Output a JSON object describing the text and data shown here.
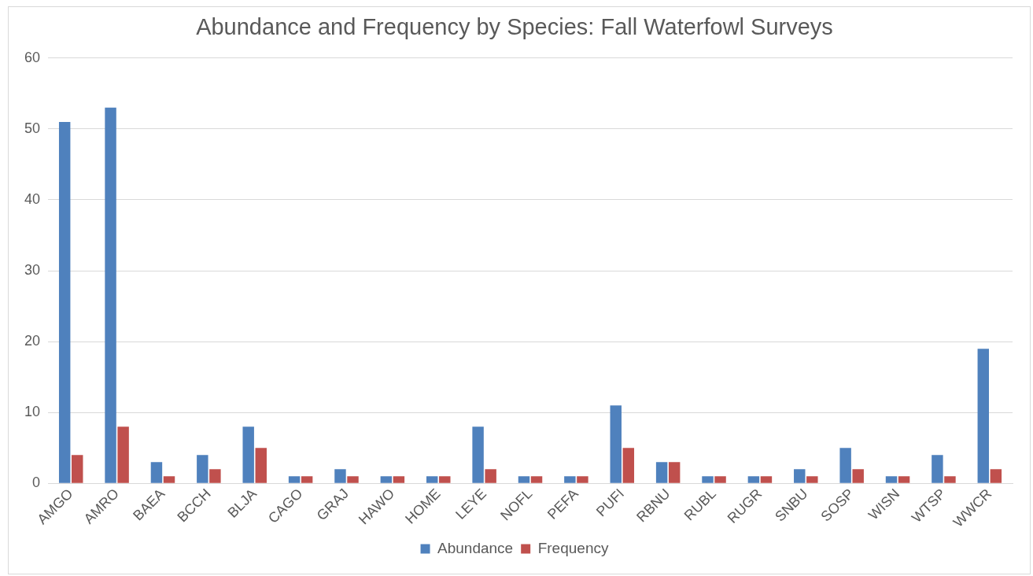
{
  "chart_data": {
    "type": "bar",
    "title": "Abundance and Frequency by Species: Fall Waterfowl Surveys",
    "categories": [
      "AMGO",
      "AMRO",
      "BAEA",
      "BCCH",
      "BLJA",
      "CAGO",
      "GRAJ",
      "HAWO",
      "HOME",
      "LEYE",
      "NOFL",
      "PEFA",
      "PUFI",
      "RBNU",
      "RUBL",
      "RUGR",
      "SNBU",
      "SOSP",
      "WISN",
      "WTSP",
      "WWCR"
    ],
    "series": [
      {
        "name": "Abundance",
        "color": "#4f81bd",
        "values": [
          51,
          53,
          3,
          4,
          8,
          1,
          2,
          1,
          1,
          8,
          1,
          1,
          11,
          3,
          1,
          1,
          2,
          5,
          1,
          4,
          19
        ]
      },
      {
        "name": "Frequency",
        "color": "#c0504d",
        "values": [
          4,
          8,
          1,
          2,
          5,
          1,
          1,
          1,
          1,
          2,
          1,
          1,
          5,
          3,
          1,
          1,
          1,
          2,
          1,
          1,
          2
        ]
      }
    ],
    "ylim": [
      0,
      60
    ],
    "yticks": [
      0,
      10,
      20,
      30,
      40,
      50,
      60
    ],
    "grid": "y",
    "legend": "bottom"
  }
}
